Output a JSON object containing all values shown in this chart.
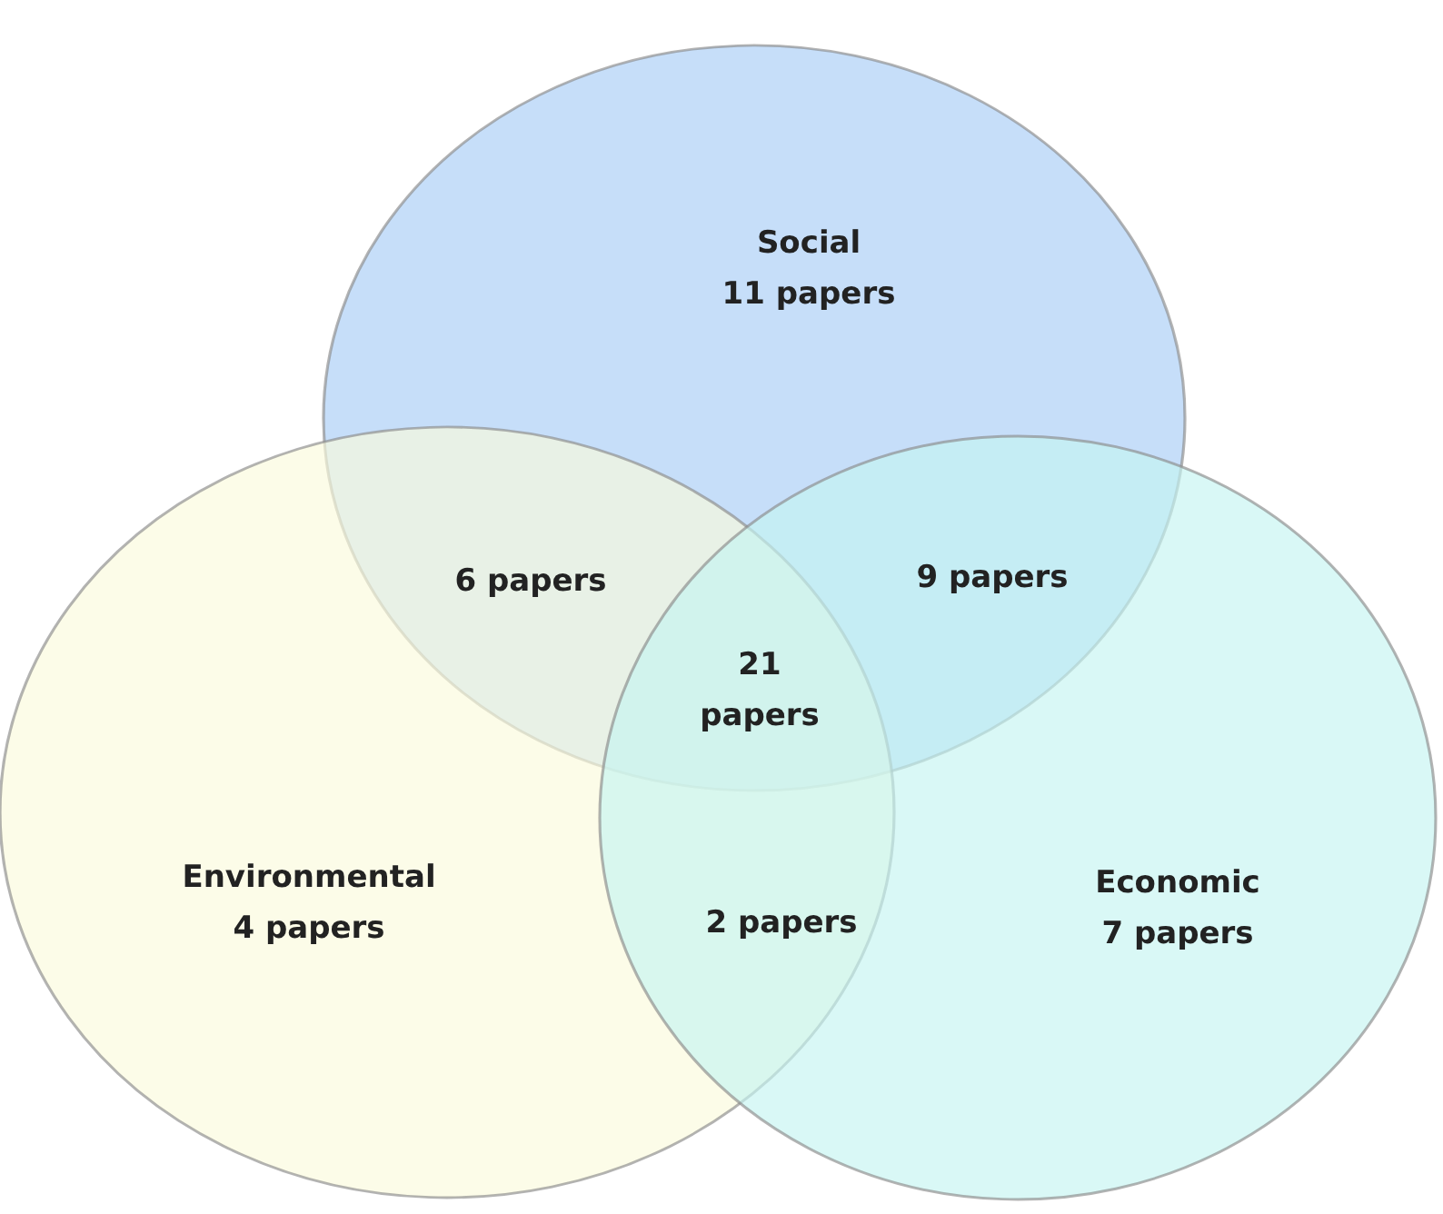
{
  "chart_data": {
    "type": "other",
    "series": [
      {
        "name": "Social",
        "color": "#a7ccf6",
        "values": [
          11
        ],
        "value_labels": [
          "11 papers"
        ]
      },
      {
        "name": "Environmental",
        "color": "#fbfbdc",
        "values": [
          4
        ],
        "value_labels": [
          "4 papers"
        ]
      },
      {
        "name": "Economic",
        "color": "#c4f4f1",
        "values": [
          7
        ],
        "value_labels": [
          "7 papers"
        ]
      }
    ],
    "annotations": [
      "6 papers",
      "9 papers",
      "21 papers",
      "2 papers"
    ]
  }
}
